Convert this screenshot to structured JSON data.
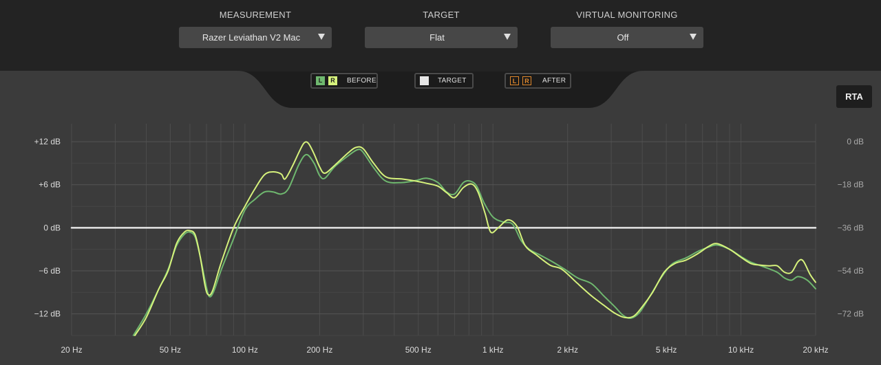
{
  "header": {
    "measurement": {
      "title": "MEASUREMENT",
      "value": "Razer Leviathan V2 Mac"
    },
    "target": {
      "title": "TARGET",
      "value": "Flat"
    },
    "virtual_monitoring": {
      "title": "VIRTUAL MONITORING",
      "value": "Off"
    }
  },
  "legend": {
    "before": {
      "l": "L",
      "r": "R",
      "label": "BEFORE"
    },
    "target": {
      "label": "TARGET"
    },
    "after": {
      "l": "L",
      "r": "R",
      "label": "AFTER"
    }
  },
  "rta_label": "RTA",
  "colors": {
    "before_left": "#6fb86f",
    "before_right": "#d6f27c",
    "target": "#e6e6e6",
    "after": "#e0882c"
  },
  "chart_data": {
    "type": "line",
    "x_scale": "log",
    "xlim": [
      20,
      20000
    ],
    "ylim": [
      -15,
      14.5
    ],
    "y2lim": [
      -81,
      7.5
    ],
    "grid": true,
    "x_ticks": [
      {
        "v": 20,
        "label": "20 Hz"
      },
      {
        "v": 50,
        "label": "50 Hz"
      },
      {
        "v": 100,
        "label": "100 Hz"
      },
      {
        "v": 200,
        "label": "200 Hz"
      },
      {
        "v": 500,
        "label": "500 Hz"
      },
      {
        "v": 1000,
        "label": "1 kHz"
      },
      {
        "v": 2000,
        "label": "2 kHz"
      },
      {
        "v": 5000,
        "label": "5 kHz"
      },
      {
        "v": 10000,
        "label": "10 kHz"
      },
      {
        "v": 20000,
        "label": "20 kHz"
      }
    ],
    "y_ticks": [
      {
        "v": 12,
        "label": "+12 dB"
      },
      {
        "v": 6,
        "label": "+6 dB"
      },
      {
        "v": 0,
        "label": "0 dB"
      },
      {
        "v": -6,
        "label": "−6 dB"
      },
      {
        "v": -12,
        "label": "−12 dB"
      }
    ],
    "y2_ticks": [
      {
        "v": 0,
        "label": "0 dB"
      },
      {
        "v": -18,
        "label": "−18 dB"
      },
      {
        "v": -36,
        "label": "−36 dB"
      },
      {
        "v": -54,
        "label": "−54 dB"
      },
      {
        "v": -72,
        "label": "−72 dB"
      }
    ],
    "series": [
      {
        "name": "TARGET",
        "points": [
          [
            20,
            0
          ],
          [
            20000,
            0
          ]
        ]
      },
      {
        "name": "L",
        "points": [
          [
            35.5,
            -15
          ],
          [
            40,
            -12
          ],
          [
            45,
            -8.5
          ],
          [
            49,
            -5.8
          ],
          [
            53,
            -2.5
          ],
          [
            57,
            -0.9
          ],
          [
            60,
            -0.6
          ],
          [
            63,
            -1.3
          ],
          [
            66,
            -4
          ],
          [
            70,
            -8.3
          ],
          [
            72,
            -9.6
          ],
          [
            75,
            -8.8
          ],
          [
            80,
            -6
          ],
          [
            90,
            -1.5
          ],
          [
            100,
            2.5
          ],
          [
            110,
            4
          ],
          [
            120,
            5
          ],
          [
            130,
            5
          ],
          [
            140,
            4.7
          ],
          [
            150,
            5.5
          ],
          [
            165,
            8.8
          ],
          [
            177,
            10.2
          ],
          [
            190,
            9
          ],
          [
            200,
            7.3
          ],
          [
            210,
            6.9
          ],
          [
            230,
            8.5
          ],
          [
            260,
            10
          ],
          [
            285,
            10.9
          ],
          [
            300,
            10.5
          ],
          [
            330,
            8.4
          ],
          [
            370,
            6.5
          ],
          [
            430,
            6.3
          ],
          [
            490,
            6.6
          ],
          [
            540,
            6.9
          ],
          [
            600,
            6.3
          ],
          [
            650,
            5
          ],
          [
            700,
            4.7
          ],
          [
            760,
            6.3
          ],
          [
            810,
            6.5
          ],
          [
            860,
            5.8
          ],
          [
            920,
            3.5
          ],
          [
            1000,
            1.5
          ],
          [
            1100,
            0.8
          ],
          [
            1200,
            0.5
          ],
          [
            1300,
            -1.8
          ],
          [
            1400,
            -3
          ],
          [
            1550,
            -3.8
          ],
          [
            1750,
            -4.8
          ],
          [
            1950,
            -5.8
          ],
          [
            2200,
            -7
          ],
          [
            2500,
            -7.8
          ],
          [
            2800,
            -9.5
          ],
          [
            3100,
            -11
          ],
          [
            3350,
            -12.2
          ],
          [
            3600,
            -12.6
          ],
          [
            3900,
            -11.8
          ],
          [
            4300,
            -9.5
          ],
          [
            4800,
            -6.8
          ],
          [
            5300,
            -5
          ],
          [
            6000,
            -4.2
          ],
          [
            6700,
            -3.3
          ],
          [
            7400,
            -2.7
          ],
          [
            8000,
            -2.4
          ],
          [
            9000,
            -3
          ],
          [
            10000,
            -4
          ],
          [
            11000,
            -4.8
          ],
          [
            12500,
            -5.5
          ],
          [
            14000,
            -6.2
          ],
          [
            15000,
            -7
          ],
          [
            16000,
            -7.3
          ],
          [
            17000,
            -6.8
          ],
          [
            18500,
            -7.3
          ],
          [
            20000,
            -8.5
          ]
        ]
      },
      {
        "name": "R",
        "points": [
          [
            36,
            -15
          ],
          [
            40,
            -12.5
          ],
          [
            45,
            -8.5
          ],
          [
            49,
            -6
          ],
          [
            53,
            -2.2
          ],
          [
            57,
            -0.6
          ],
          [
            60,
            -0.4
          ],
          [
            63,
            -1
          ],
          [
            66,
            -4
          ],
          [
            69,
            -8
          ],
          [
            71,
            -9.3
          ],
          [
            74,
            -8.8
          ],
          [
            80,
            -5
          ],
          [
            90,
            0
          ],
          [
            100,
            3
          ],
          [
            110,
            5.5
          ],
          [
            120,
            7.4
          ],
          [
            130,
            7.8
          ],
          [
            140,
            7.5
          ],
          [
            145,
            6.8
          ],
          [
            155,
            8.5
          ],
          [
            165,
            10.5
          ],
          [
            173,
            11.8
          ],
          [
            180,
            11.8
          ],
          [
            190,
            10.3
          ],
          [
            200,
            8.5
          ],
          [
            210,
            7.6
          ],
          [
            230,
            8.7
          ],
          [
            260,
            10.4
          ],
          [
            280,
            11.2
          ],
          [
            300,
            11
          ],
          [
            330,
            9
          ],
          [
            370,
            7.1
          ],
          [
            430,
            6.8
          ],
          [
            490,
            6.5
          ],
          [
            540,
            6.2
          ],
          [
            600,
            5.8
          ],
          [
            650,
            4.9
          ],
          [
            700,
            4.2
          ],
          [
            760,
            5.6
          ],
          [
            820,
            6.1
          ],
          [
            870,
            5
          ],
          [
            930,
            2
          ],
          [
            980,
            -0.6
          ],
          [
            1050,
            0
          ],
          [
            1150,
            1.1
          ],
          [
            1250,
            0.2
          ],
          [
            1350,
            -2.5
          ],
          [
            1500,
            -3.8
          ],
          [
            1700,
            -5.2
          ],
          [
            1900,
            -5.8
          ],
          [
            2200,
            -7.8
          ],
          [
            2500,
            -9.5
          ],
          [
            2800,
            -10.8
          ],
          [
            3100,
            -11.9
          ],
          [
            3400,
            -12.5
          ],
          [
            3700,
            -12.3
          ],
          [
            4000,
            -11
          ],
          [
            4400,
            -9
          ],
          [
            4900,
            -6.2
          ],
          [
            5400,
            -5
          ],
          [
            6000,
            -4.5
          ],
          [
            6700,
            -3.6
          ],
          [
            7400,
            -2.6
          ],
          [
            8000,
            -2.2
          ],
          [
            9000,
            -3
          ],
          [
            10000,
            -4.1
          ],
          [
            11000,
            -5
          ],
          [
            12000,
            -5.2
          ],
          [
            13000,
            -5.3
          ],
          [
            14000,
            -5.3
          ],
          [
            15000,
            -6.2
          ],
          [
            16000,
            -6.2
          ],
          [
            17000,
            -4.7
          ],
          [
            17800,
            -4.6
          ],
          [
            19000,
            -6.5
          ],
          [
            20000,
            -7.6
          ]
        ]
      }
    ]
  }
}
